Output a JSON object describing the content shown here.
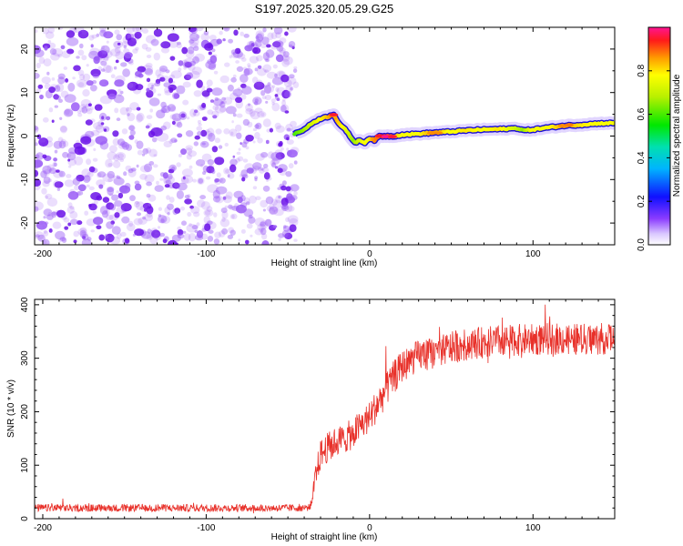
{
  "figure": {
    "title": "S197.2025.320.05.29.G25"
  },
  "chart_data": [
    {
      "type": "heatmap",
      "title": "S197.2025.320.05.29.G25",
      "xlabel": "Height of straight line (km)",
      "ylabel": "Frequency (Hz)",
      "xlim": [
        -205,
        150
      ],
      "ylim": [
        -25,
        25
      ],
      "xticks": [
        -200,
        -100,
        0,
        100
      ],
      "yticks": [
        -20,
        -10,
        0,
        10,
        20
      ],
      "noise_region": {
        "x_from": -205,
        "x_to": -45,
        "description_color": "#7a1cf0"
      },
      "signal_track": {
        "x": [
          -46,
          -40,
          -35,
          -30,
          -25,
          -22,
          -19,
          -15,
          -12,
          -9,
          -6,
          -3,
          0,
          3,
          6,
          10,
          15,
          20,
          30,
          40,
          50,
          60,
          70,
          80,
          90,
          95,
          100,
          110,
          120,
          130,
          140,
          150
        ],
        "y": [
          0.5,
          1.5,
          3,
          4,
          4.5,
          5,
          3,
          1.5,
          0,
          -1.5,
          -1.0,
          -1.5,
          -0.5,
          -1,
          0,
          0,
          0,
          0.3,
          0.5,
          0.8,
          1.0,
          1.3,
          1.5,
          1.6,
          1.8,
          1.3,
          1.5,
          2.0,
          2.4,
          2.6,
          2.9,
          3.0
        ],
        "amplitude": [
          0.4,
          0.5,
          0.6,
          0.7,
          0.8,
          0.9,
          0.8,
          0.7,
          0.6,
          0.5,
          0.6,
          0.7,
          0.7,
          0.85,
          0.9,
          0.95,
          0.9,
          0.7,
          0.7,
          0.85,
          0.7,
          0.75,
          0.7,
          0.75,
          0.6,
          0.5,
          0.7,
          0.7,
          0.85,
          0.75,
          0.7,
          0.7
        ]
      },
      "colorbar": {
        "label": "Normalized spectral amplitude",
        "range": [
          0,
          1
        ],
        "ticks": [
          "0.0",
          "0.2",
          "0.4",
          "0.6",
          "0.8"
        ],
        "tick_values": [
          0.0,
          0.2,
          0.4,
          0.6,
          0.8
        ]
      }
    },
    {
      "type": "line",
      "xlabel": "Height of straight line (km)",
      "ylabel": "SNR (10 * v/v)",
      "xlim": [
        -205,
        150
      ],
      "ylim": [
        0,
        410
      ],
      "xticks": [
        -200,
        -100,
        0,
        100
      ],
      "yticks": [
        0,
        100,
        200,
        300,
        400
      ],
      "color": "#e8312a",
      "series": [
        {
          "name": "SNR",
          "x": [
            -205,
            -150,
            -100,
            -50,
            -36,
            -33,
            -30,
            -25,
            -20,
            -15,
            -10,
            -5,
            0,
            5,
            10,
            15,
            20,
            25,
            30,
            40,
            50,
            60,
            70,
            80,
            90,
            100,
            110,
            120,
            130,
            140,
            150
          ],
          "mean": [
            20,
            20,
            20,
            20,
            21,
            80,
            120,
            135,
            145,
            150,
            160,
            175,
            190,
            215,
            240,
            265,
            285,
            295,
            305,
            310,
            320,
            325,
            330,
            332,
            334,
            335,
            336,
            336,
            335,
            336,
            337
          ],
          "spread": [
            7,
            7,
            7,
            7,
            7,
            25,
            28,
            28,
            28,
            28,
            30,
            30,
            30,
            32,
            32,
            32,
            30,
            30,
            30,
            30,
            30,
            30,
            30,
            30,
            30,
            30,
            30,
            30,
            30,
            30,
            30
          ]
        }
      ]
    }
  ]
}
